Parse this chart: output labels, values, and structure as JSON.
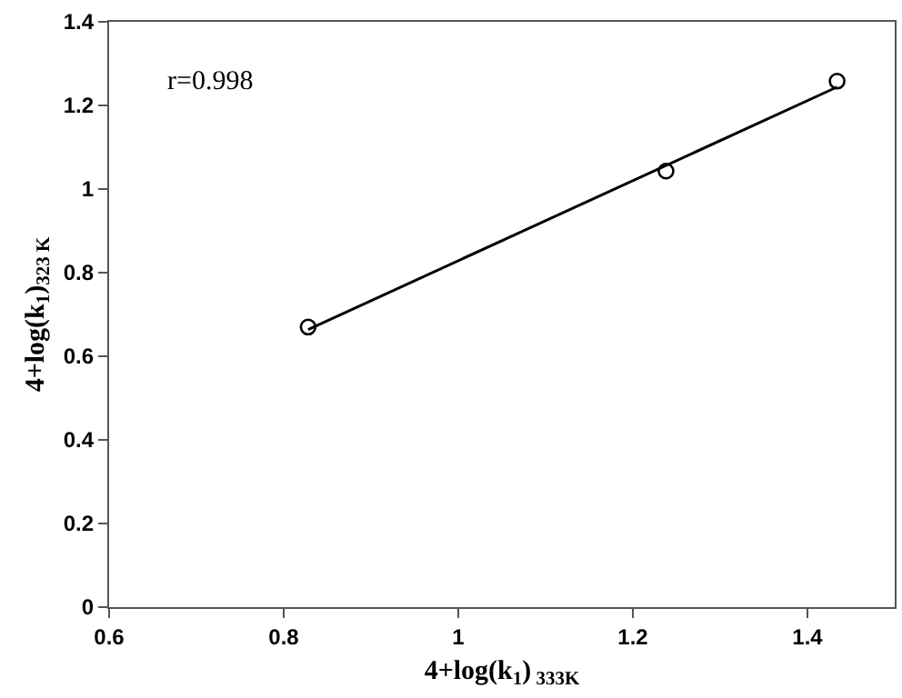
{
  "chart_data": {
    "type": "scatter",
    "xlabel": "4+log(k$_{1}$)$_{ 333K}$",
    "ylabel": "4+log(k$_{1}$)$_{323 K}$",
    "xlim": [
      0.6,
      1.5
    ],
    "xticks": [
      0.6,
      0.8,
      1,
      1.2,
      1.4
    ],
    "ylim": [
      0,
      1.4
    ],
    "yticks": [
      0,
      0.2,
      0.4,
      0.6,
      0.8,
      1,
      1.2,
      1.4
    ],
    "series": [
      {
        "x": [
          0.828,
          1.238,
          1.434
        ],
        "values": [
          0.67,
          1.043,
          1.258
        ],
        "color": "#000000",
        "marker": "circle"
      },
      {
        "type": "line",
        "x": [
          0.828,
          1.434
        ],
        "values": [
          0.664,
          1.244
        ],
        "color": "#000000",
        "line_style": "solid",
        "marker": "none"
      }
    ],
    "annotations": [
      "r=0.998"
    ]
  }
}
